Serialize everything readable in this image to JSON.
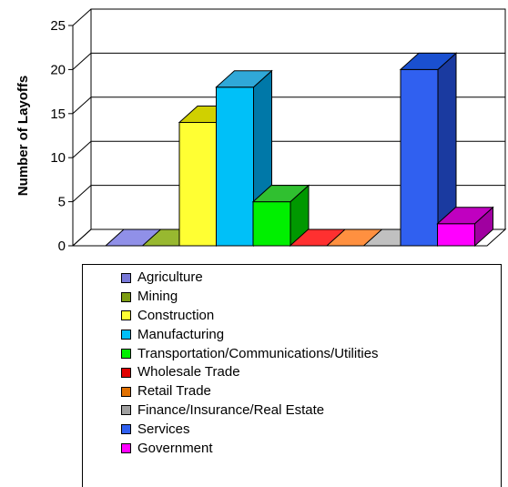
{
  "chart_data": {
    "type": "bar",
    "title": "",
    "xlabel": "",
    "ylabel": "Number of Layoffs",
    "ylim": [
      0,
      25
    ],
    "yticks": [
      "0",
      "5",
      "10",
      "15",
      "20",
      "25"
    ],
    "grid": true,
    "style": "3d-bars",
    "legend_position": "bottom",
    "categories": [
      "Agriculture",
      "Mining",
      "Construction",
      "Manufacturing",
      "Transportation/Communications/Utilities",
      "Wholesale Trade",
      "Retail Trade",
      "Finance/Insurance/Real Estate",
      "Services",
      "Government"
    ],
    "values": [
      0,
      0,
      14,
      18,
      5,
      0,
      0,
      0,
      20,
      2.5
    ],
    "colors": [
      "#7878d8",
      "#7c9c12",
      "#ffff33",
      "#00c0f8",
      "#00f000",
      "#e00000",
      "#e07000",
      "#a0a0a0",
      "#3060f0",
      "#ff00ff"
    ],
    "side_colors": [
      "#4a4aa0",
      "#4d6208",
      "#a8a800",
      "#0078a8",
      "#009800",
      "#8c0000",
      "#8c4400",
      "#686868",
      "#1a3aa0",
      "#a000a0"
    ],
    "top_colors": [
      "#9090e8",
      "#98b830",
      "#d0d000",
      "#30a8d8",
      "#30c030",
      "#ff3030",
      "#ff9040",
      "#c0c0c0",
      "#1a50d0",
      "#c000c0"
    ]
  }
}
